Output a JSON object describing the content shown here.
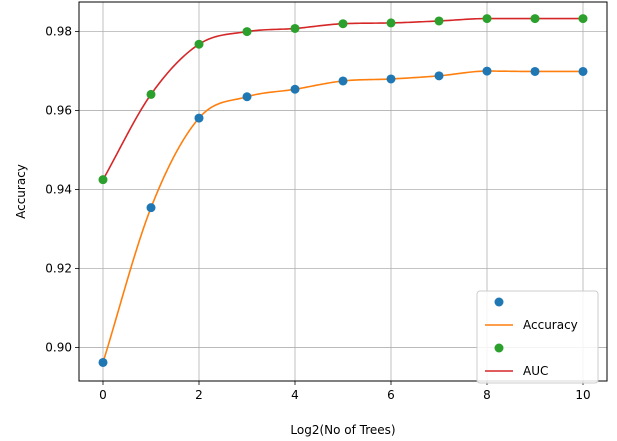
{
  "chart_data": {
    "type": "line",
    "title": "",
    "xlabel": "Log2(No of Trees)",
    "ylabel": "Accuracy",
    "xlim": [
      -0.5,
      10.5
    ],
    "ylim": [
      0.8915,
      0.9875
    ],
    "x_ticks": [
      0,
      2,
      4,
      6,
      8,
      10
    ],
    "y_ticks": [
      0.9,
      0.92,
      0.94,
      0.96,
      0.98
    ],
    "x_tick_labels": [
      "0",
      "2",
      "4",
      "6",
      "8",
      "10"
    ],
    "y_tick_labels": [
      "0.90",
      "0.92",
      "0.94",
      "0.96",
      "0.98"
    ],
    "grid": true,
    "legend_position": "lower-right",
    "x": [
      0,
      1,
      2,
      3,
      4,
      5,
      6,
      7,
      8,
      9,
      10
    ],
    "series": [
      {
        "kind": "scatter",
        "name": "",
        "color": "#1f77b4",
        "values": [
          0.8962,
          0.9354,
          0.9581,
          0.9635,
          0.9654,
          0.9675,
          0.968,
          0.9688,
          0.97,
          0.9699,
          0.9699
        ]
      },
      {
        "kind": "line",
        "name": "Accuracy",
        "color": "#ff7f0e",
        "values": [
          0.8962,
          0.9354,
          0.9581,
          0.9635,
          0.9654,
          0.9675,
          0.968,
          0.9688,
          0.97,
          0.9699,
          0.9699
        ]
      },
      {
        "kind": "scatter",
        "name": "",
        "color": "#2ca02c",
        "values": [
          0.9425,
          0.9641,
          0.9768,
          0.98,
          0.9808,
          0.982,
          0.9822,
          0.9827,
          0.9833,
          0.9833,
          0.9833
        ]
      },
      {
        "kind": "line",
        "name": "AUC",
        "color": "#d62728",
        "values": [
          0.9425,
          0.9641,
          0.9768,
          0.98,
          0.9808,
          0.982,
          0.9822,
          0.9827,
          0.9833,
          0.9833,
          0.9833
        ]
      }
    ]
  }
}
